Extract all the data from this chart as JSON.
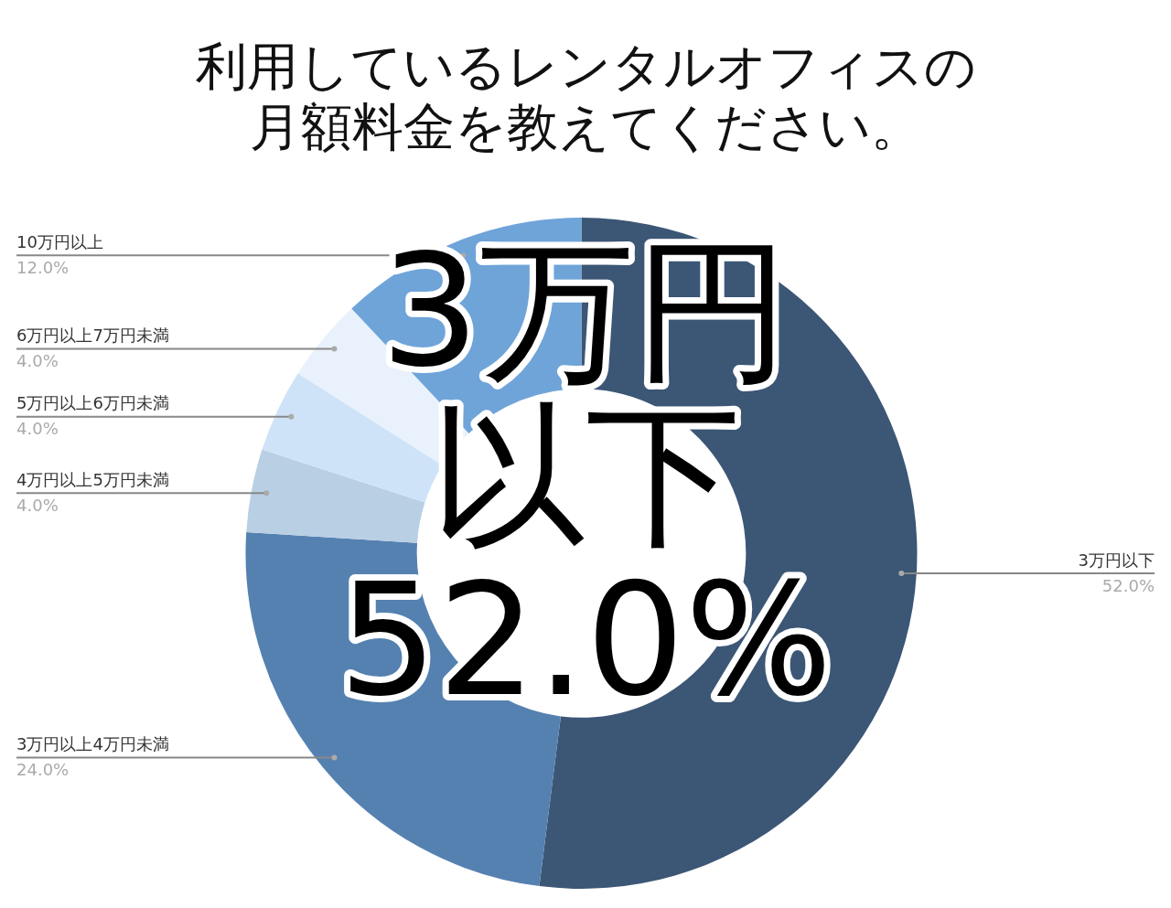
{
  "chart_data": {
    "type": "donut",
    "title": "利用しているレンタルオフィスの月額料金を教えてください。",
    "categories": [
      "3万円以下",
      "3万円以上4万円未満",
      "4万円以上5万円未満",
      "5万円以上6万円未満",
      "6万円以上7万円未満",
      "10万円以上"
    ],
    "values": [
      52,
      24,
      4,
      4,
      4,
      12
    ],
    "value_labels": [
      "52.0%",
      "24.0%",
      "4.0%",
      "4.0%",
      "4.0%",
      "12.0%"
    ],
    "colors": [
      "#3c5675",
      "#5581b1",
      "#b9cfe4",
      "#cfe3f8",
      "#e9f2fc",
      "#6fa4d9"
    ],
    "annotations": [
      "3万円以下52.0%"
    ],
    "legend": false
  }
}
